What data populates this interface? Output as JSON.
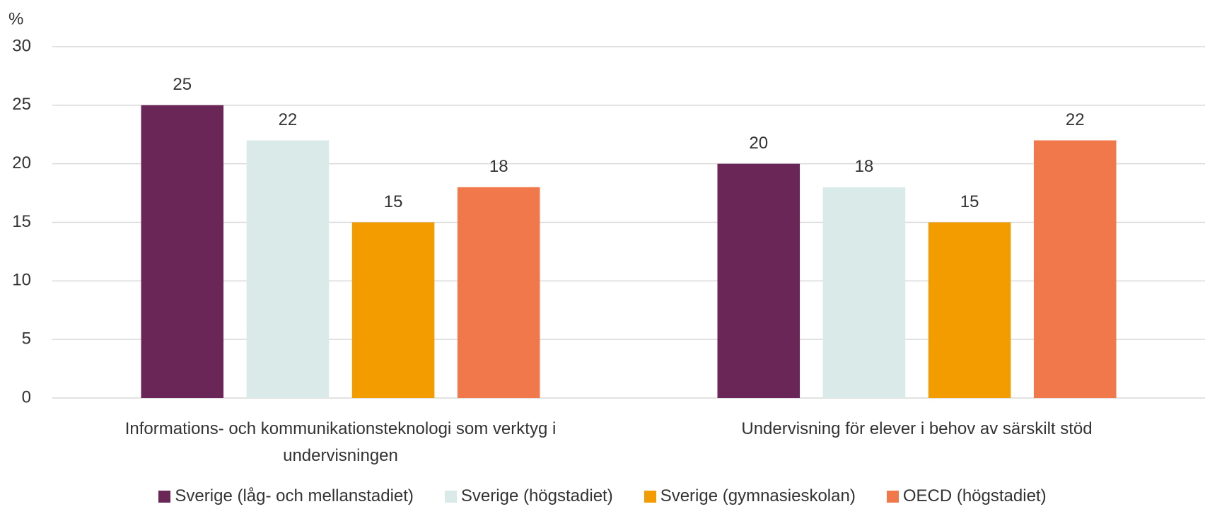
{
  "chart_data": {
    "type": "bar",
    "ylabel": "%",
    "categories": [
      "Informations- och kommunikationsteknologi som verktyg i undervisningen",
      "Undervisning för elever i behov av särskilt stöd"
    ],
    "series": [
      {
        "name": "Sverige (låg- och mellanstadiet)",
        "color": "#6a2657",
        "values": [
          25,
          20
        ]
      },
      {
        "name": "Sverige (högstadiet)",
        "color": "#daeae9",
        "values": [
          22,
          18
        ]
      },
      {
        "name": "Sverige (gymnasieskolan)",
        "color": "#f39c00",
        "values": [
          15,
          15
        ]
      },
      {
        "name": "OECD (högstadiet)",
        "color": "#f0784a",
        "values": [
          18,
          22
        ]
      }
    ],
    "ylim": [
      0,
      30
    ],
    "yticks": [
      0,
      5,
      10,
      15,
      20,
      25,
      30
    ],
    "grid": true,
    "legend": "bottom",
    "data_labels": true
  }
}
